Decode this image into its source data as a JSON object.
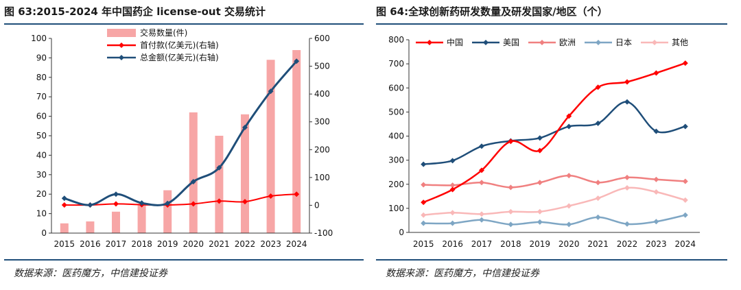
{
  "left": {
    "title": "图 63:2015-2024 年中国药企 license-out 交易统计",
    "source": "数据来源：医药魔方，中信建投证券",
    "chart_data": {
      "type": "bar",
      "categories": [
        "2015",
        "2016",
        "2017",
        "2018",
        "2019",
        "2020",
        "2021",
        "2022",
        "2023",
        "2024"
      ],
      "y_left": {
        "range": [
          0,
          100
        ],
        "ticks": [
          0,
          10,
          20,
          30,
          40,
          50,
          60,
          70,
          80,
          90,
          100
        ]
      },
      "y_right": {
        "range": [
          -100,
          600
        ],
        "ticks": [
          -100,
          0,
          100,
          200,
          300,
          400,
          500,
          600
        ]
      },
      "series": [
        {
          "name": "交易数量(件)",
          "kind": "bar",
          "axis": "left",
          "color": "#f7a6a6",
          "values": [
            5,
            6,
            11,
            15,
            22,
            62,
            50,
            61,
            89,
            94
          ]
        },
        {
          "name": "首付款(亿美元)(右轴)",
          "kind": "line",
          "axis": "right",
          "color": "#ff0000",
          "values": [
            1,
            1,
            5,
            2,
            1,
            5,
            15,
            13,
            33,
            40
          ]
        },
        {
          "name": "总金额(亿美元)(右轴)",
          "kind": "line",
          "axis": "right",
          "color": "#1f4e79",
          "values": [
            25,
            1,
            40,
            8,
            7,
            85,
            135,
            280,
            410,
            518
          ]
        }
      ],
      "legend_position": "top-center",
      "grid": false
    }
  },
  "right": {
    "title": "图 64:全球创新药研发数量及研发国家/地区（个）",
    "source": "数据来源：医药魔方，中信建投证券",
    "chart_data": {
      "type": "line",
      "categories": [
        "2015",
        "2016",
        "2017",
        "2018",
        "2019",
        "2020",
        "2021",
        "2022",
        "2023",
        "2024"
      ],
      "y": {
        "range": [
          0,
          800
        ],
        "ticks": [
          0,
          100,
          200,
          300,
          400,
          500,
          600,
          700,
          800
        ]
      },
      "series": [
        {
          "name": "中国",
          "color": "#ff0000",
          "values": [
            125,
            178,
            258,
            378,
            340,
            483,
            603,
            625,
            662,
            703
          ]
        },
        {
          "name": "美国",
          "color": "#1f4e79",
          "values": [
            283,
            298,
            358,
            380,
            392,
            440,
            453,
            542,
            420,
            440
          ]
        },
        {
          "name": "欧洲",
          "color": "#f08080",
          "values": [
            198,
            196,
            207,
            187,
            207,
            236,
            207,
            228,
            220,
            212
          ]
        },
        {
          "name": "日本",
          "color": "#7ea6c4",
          "values": [
            38,
            38,
            52,
            33,
            43,
            33,
            63,
            35,
            45,
            72
          ]
        },
        {
          "name": "其他",
          "color": "#f9b8b8",
          "values": [
            72,
            82,
            76,
            86,
            86,
            110,
            142,
            185,
            168,
            134
          ]
        }
      ],
      "legend_position": "top",
      "grid": false
    }
  }
}
